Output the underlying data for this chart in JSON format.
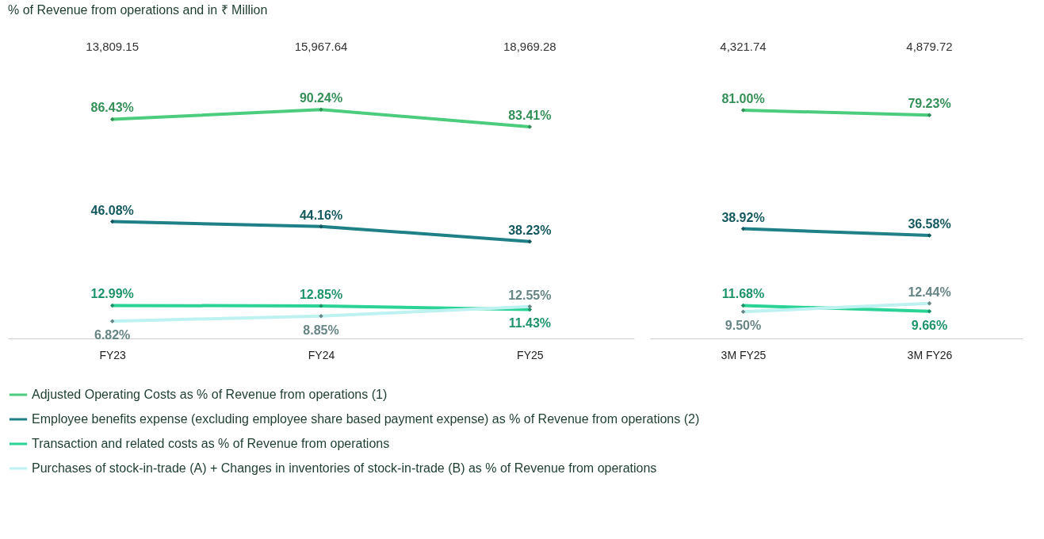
{
  "chart_data": [
    {
      "type": "line",
      "subtitle": "% of Revenue from operations and in ₹ Million",
      "categories": [
        "FY23",
        "FY24",
        "FY25"
      ],
      "tick_labels": "x",
      "grid": false,
      "marker": "diamond",
      "line_style": "solid",
      "legend": "bottom",
      "annotations": [
        "13,809.15",
        "15,967.64",
        "18,969.28"
      ],
      "series": [
        {
          "name": "Adjusted Operating Costs as % of Revenue from operations (1)",
          "color": "#4ccd7e",
          "values": [
            86.43,
            90.24,
            83.41
          ],
          "value_labels": [
            "86.43%",
            "90.24%",
            "83.41%"
          ]
        },
        {
          "name": "Employee benefits expense (excluding employee share based payment expense) as % of Revenue from operations (2)",
          "color": "#1f8088",
          "values": [
            46.08,
            44.16,
            38.23
          ],
          "value_labels": [
            "46.08%",
            "44.16%",
            "38.23%"
          ]
        },
        {
          "name": "Transaction and related costs as % of Revenue from operations",
          "color": "#2bd396",
          "values": [
            12.99,
            12.85,
            11.43
          ],
          "value_labels": [
            "12.99%",
            "12.85%",
            "11.43%"
          ]
        },
        {
          "name": "Purchases of stock-in-trade (A) + Changes in inventories of stock-in-trade (B) as % of Revenue from operations",
          "color": "#bdf2f0",
          "values": [
            6.82,
            8.85,
            12.55
          ],
          "value_labels": [
            "6.82%",
            "8.85%",
            "12.55%"
          ]
        }
      ]
    },
    {
      "type": "line",
      "categories": [
        "3M FY25",
        "3M FY26"
      ],
      "tick_labels": "x",
      "grid": false,
      "marker": "diamond",
      "line_style": "solid",
      "annotations": [
        "4,321.74",
        "4,879.72"
      ],
      "series": [
        {
          "name": "Adjusted Operating Costs as % of Revenue from operations (1)",
          "color": "#4ccd7e",
          "values": [
            81.0,
            79.23
          ],
          "value_labels": [
            "81.00%",
            "79.23%"
          ]
        },
        {
          "name": "Employee benefits expense (excluding employee share based payment expense) as % of Revenue from operations (2)",
          "color": "#1f8088",
          "values": [
            38.92,
            36.58
          ],
          "value_labels": [
            "38.92%",
            "36.58%"
          ]
        },
        {
          "name": "Transaction and related costs as % of Revenue from operations",
          "color": "#2bd396",
          "values": [
            11.68,
            9.66
          ],
          "value_labels": [
            "11.68%",
            "9.66%"
          ]
        },
        {
          "name": "Purchases of stock-in-trade (A) + Changes in inventories of stock-in-trade (B) as % of Revenue from operations",
          "color": "#bdf2f0",
          "values": [
            9.5,
            12.44
          ],
          "value_labels": [
            "9.50%",
            "12.44%"
          ]
        }
      ]
    }
  ]
}
